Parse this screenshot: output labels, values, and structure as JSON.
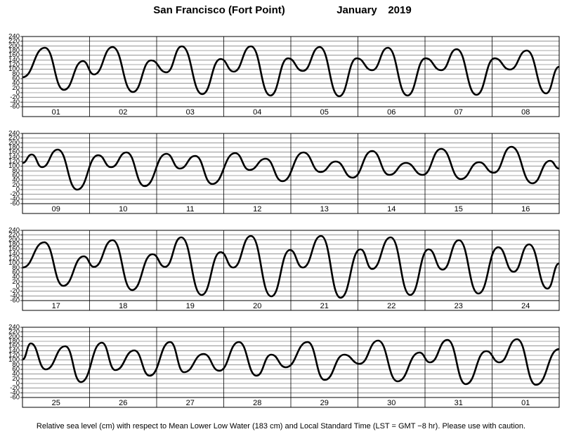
{
  "header": {
    "title": "San Francisco (Fort Point)",
    "month": "January",
    "year": "2019"
  },
  "caption": "Relative sea level (cm) with respect to Mean Lower Low Water (183 cm) and Local Standard Time (LST = GMT −8 hr). Please use with caution.",
  "chart_data": [
    {
      "type": "line",
      "categories": [
        "01",
        "02",
        "03",
        "04",
        "05",
        "06",
        "07",
        "08"
      ],
      "color": "#000000",
      "xlim": [
        0,
        192
      ],
      "ylim": [
        -60,
        240
      ],
      "yticks": [
        -60,
        -40,
        -20,
        0,
        20,
        40,
        60,
        80,
        100,
        120,
        140,
        160,
        180,
        200,
        220,
        240
      ],
      "grid": true,
      "x": [
        0,
        8,
        14.8,
        21.6,
        25.6,
        32.2,
        39.5,
        46,
        51.5,
        57,
        64.3,
        70.9,
        75.6,
        81.7,
        88.7,
        95,
        100.3,
        106.3,
        113.3,
        119.6,
        125.1,
        130.7,
        137.7,
        144.2,
        149.8,
        155.3,
        162.4,
        168.9,
        174.4,
        180.4,
        187.3,
        192
      ],
      "values": [
        66,
        192,
        12,
        135,
        78,
        195,
        3,
        138,
        87,
        198,
        -6,
        144,
        90,
        198,
        -12,
        147,
        93,
        195,
        -15,
        147,
        96,
        192,
        -12,
        147,
        96,
        186,
        -9,
        147,
        99,
        180,
        -3,
        111
      ]
    },
    {
      "type": "line",
      "categories": [
        "09",
        "10",
        "11",
        "12",
        "13",
        "14",
        "15",
        "16"
      ],
      "color": "#000000",
      "xlim": [
        0,
        192
      ],
      "ylim": [
        -60,
        240
      ],
      "yticks": [
        -60,
        -40,
        -20,
        0,
        20,
        40,
        60,
        80,
        100,
        120,
        140,
        160,
        180,
        200,
        220,
        240
      ],
      "grid": true,
      "x": [
        0,
        3.3,
        7,
        12.6,
        19.6,
        27.1,
        31.7,
        37.2,
        43.7,
        51.5,
        56.3,
        61.8,
        67.9,
        76.1,
        81.2,
        87,
        93,
        100.5,
        106.6,
        112.1,
        118.1,
        125.1,
        131.2,
        137.2,
        143.2,
        149.8,
        156.8,
        163.3,
        168.6,
        174.9,
        182.4,
        188.7,
        192
      ],
      "values": [
        114,
        150,
        96,
        171,
        0,
        147,
        96,
        159,
        15,
        153,
        90,
        144,
        24,
        156,
        84,
        132,
        36,
        159,
        75,
        120,
        51,
        165,
        63,
        114,
        63,
        174,
        45,
        117,
        72,
        183,
        27,
        123,
        90
      ]
    },
    {
      "type": "line",
      "categories": [
        "17",
        "18",
        "19",
        "20",
        "21",
        "22",
        "23",
        "24"
      ],
      "color": "#000000",
      "xlim": [
        0,
        192
      ],
      "ylim": [
        -60,
        240
      ],
      "yticks": [
        -60,
        -40,
        -20,
        0,
        20,
        40,
        60,
        80,
        100,
        120,
        140,
        160,
        180,
        200,
        220,
        240
      ],
      "grid": true,
      "x": [
        0,
        7.8,
        14.6,
        21.9,
        25.6,
        32.2,
        39.2,
        46.5,
        51,
        56.8,
        64.1,
        70.9,
        75.4,
        81.7,
        89,
        95.7,
        100.3,
        106.8,
        113.8,
        120.9,
        125.1,
        131.7,
        138.7,
        145.3,
        150.3,
        156.1,
        163.1,
        170.2,
        175.7,
        181.2,
        187.8,
        192
      ],
      "values": [
        81,
        189,
        3,
        129,
        84,
        198,
        -15,
        138,
        84,
        210,
        -36,
        147,
        81,
        216,
        -42,
        156,
        81,
        216,
        -48,
        159,
        75,
        210,
        -36,
        159,
        72,
        198,
        -30,
        168,
        63,
        180,
        -9,
        99
      ]
    },
    {
      "type": "line",
      "categories": [
        "25",
        "26",
        "27",
        "28",
        "29",
        "30",
        "31",
        "01"
      ],
      "color": "#000000",
      "xlim": [
        0,
        192
      ],
      "ylim": [
        -60,
        240
      ],
      "yticks": [
        -60,
        -40,
        -20,
        0,
        20,
        40,
        60,
        80,
        100,
        120,
        140,
        160,
        180,
        200,
        220,
        240
      ],
      "grid": true,
      "x": [
        0,
        3,
        8.3,
        15.3,
        20.9,
        28.4,
        33.2,
        40,
        45.5,
        52.8,
        57.8,
        64.8,
        70.4,
        77.4,
        83.7,
        89,
        94.2,
        102,
        108.1,
        115.1,
        120.6,
        127.2,
        134.2,
        142,
        145.8,
        152,
        158.6,
        165.9,
        170.6,
        176.9,
        183.7,
        192
      ],
      "values": [
        102,
        171,
        60,
        159,
        6,
        174,
        57,
        141,
        33,
        177,
        48,
        126,
        54,
        177,
        33,
        123,
        69,
        177,
        15,
        123,
        84,
        183,
        9,
        132,
        90,
        186,
        -3,
        138,
        90,
        189,
        -6,
        147
      ]
    }
  ]
}
